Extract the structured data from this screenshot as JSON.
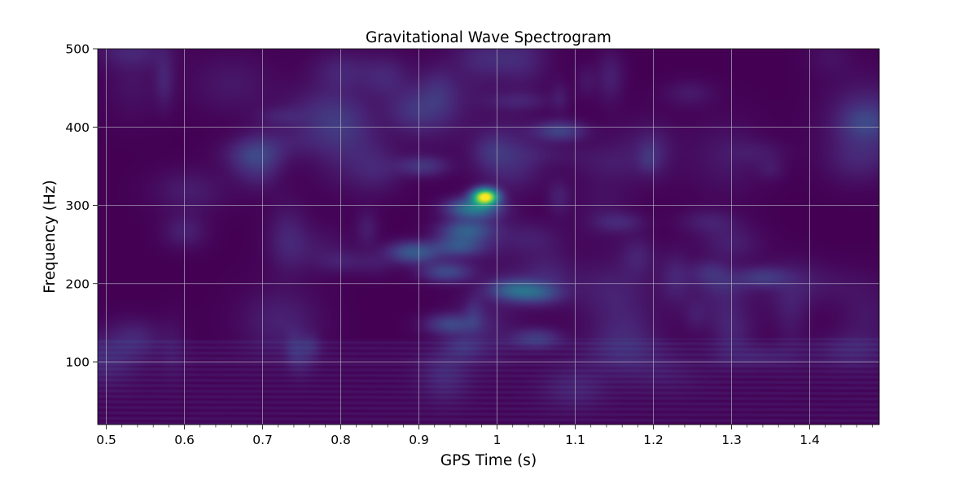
{
  "chart_data": {
    "type": "heatmap",
    "title": "Gravitational Wave Spectrogram",
    "xlabel": "GPS Time (s)",
    "ylabel": "Frequency (Hz)",
    "xlim": [
      0.489,
      1.489
    ],
    "ylim": [
      20,
      500
    ],
    "x_ticks": [
      0.5,
      0.6,
      0.7,
      0.8,
      0.9,
      1.0,
      1.1,
      1.2,
      1.3,
      1.4
    ],
    "x_tick_labels": [
      "0.5",
      "0.6",
      "0.7",
      "0.8",
      "0.9",
      "1",
      "1.1",
      "1.2",
      "1.3",
      "1.4"
    ],
    "y_ticks": [
      100,
      200,
      300,
      400,
      500
    ],
    "y_tick_labels": [
      "100",
      "200",
      "300",
      "400",
      "500"
    ],
    "grid": true,
    "colormap": "viridis",
    "features": [
      {
        "t": 0.985,
        "f": 311,
        "intensity": 1.0,
        "description": "peak"
      },
      {
        "t": 0.97,
        "f": 296,
        "intensity": 0.35
      },
      {
        "t": 0.96,
        "f": 268,
        "intensity": 0.22
      },
      {
        "t": 0.95,
        "f": 248,
        "intensity": 0.2
      },
      {
        "t": 0.895,
        "f": 238,
        "intensity": 0.18
      },
      {
        "t": 0.935,
        "f": 215,
        "intensity": 0.18
      },
      {
        "t": 1.02,
        "f": 192,
        "intensity": 0.2
      },
      {
        "t": 1.05,
        "f": 188,
        "intensity": 0.17
      },
      {
        "t": 0.94,
        "f": 148,
        "intensity": 0.16
      },
      {
        "t": 1.05,
        "f": 130,
        "intensity": 0.14
      },
      {
        "t": 1.08,
        "f": 395,
        "intensity": 0.16
      },
      {
        "t": 0.905,
        "f": 350,
        "intensity": 0.12
      },
      {
        "t": 1.34,
        "f": 208,
        "intensity": 0.12
      }
    ]
  }
}
